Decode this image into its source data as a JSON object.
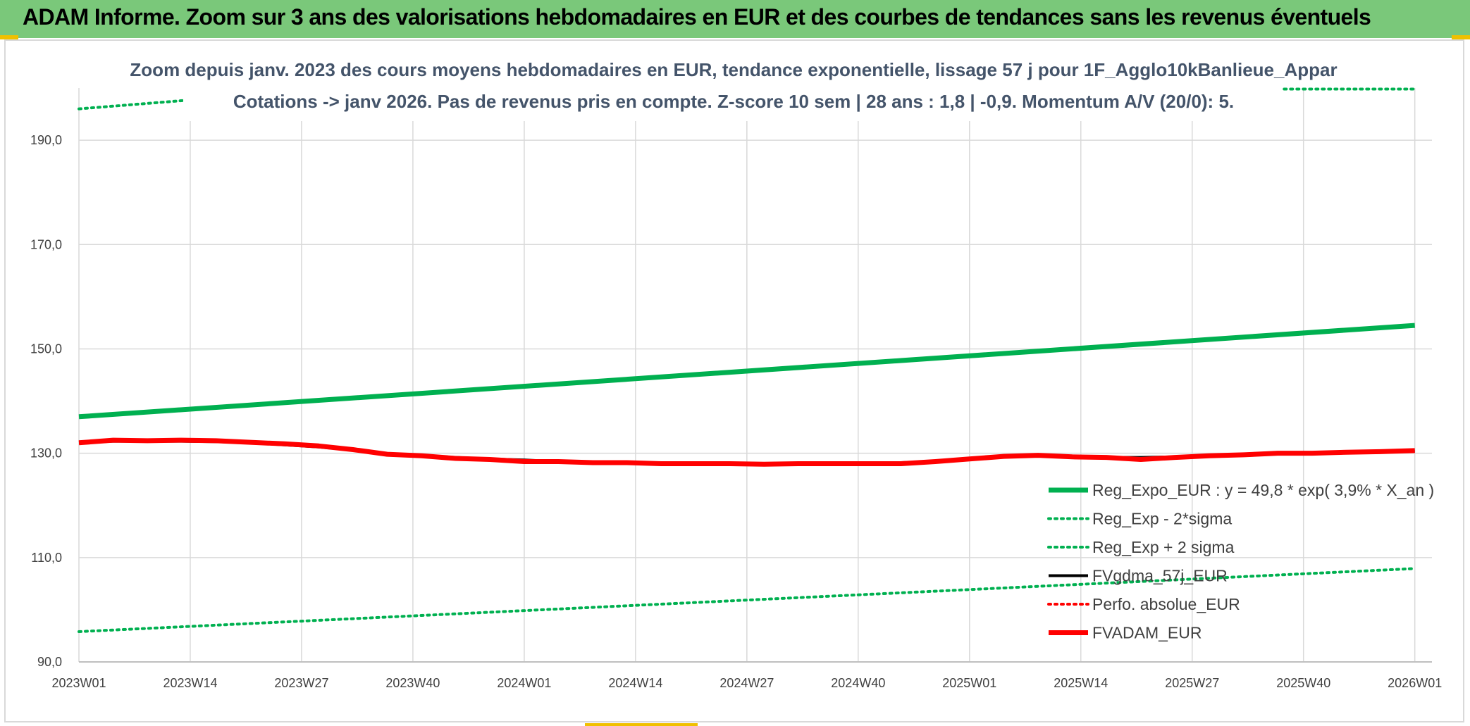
{
  "banner": {
    "title": "ADAM Informe. Zoom sur 3 ans des valorisations hebdomadaires en EUR et des courbes de tendances sans les revenus éventuels"
  },
  "chart_data": {
    "type": "line",
    "title": "Zoom depuis janv. 2023 des cours moyens hebdomadaires en EUR, tendance exponentielle, lissage 57 j pour 1F_Agglo10kBanlieue_Appar",
    "subtitle": "Cotations -> janv 2026. Pas de revenus pris en compte. Z-score 10 sem | 28 ans : 1,8 | -0,9. Momentum A/V (20/0): 5.",
    "xlabel": "",
    "ylabel": "",
    "ylim": [
      90,
      200
    ],
    "x_ticks": [
      "2023W01",
      "2023W14",
      "2023W27",
      "2023W40",
      "2024W01",
      "2024W14",
      "2024W27",
      "2024W40",
      "2025W01",
      "2025W14",
      "2025W27",
      "2025W40",
      "2026W01"
    ],
    "y_ticks": [
      "90,0",
      "110,0",
      "130,0",
      "150,0",
      "170,0",
      "190,0"
    ],
    "y_tick_values": [
      90,
      110,
      130,
      150,
      170,
      190
    ],
    "grid": true,
    "legend_position": "bottom-right",
    "series": [
      {
        "name": "Reg_Expo_EUR : y = 49,8 * exp( 3,9% *  X_an )",
        "color": "#00b050",
        "style": "solid-thick",
        "x": [
          0,
          156
        ],
        "y": [
          137.0,
          154.5
        ]
      },
      {
        "name": "Reg_Exp - 2*sigma",
        "color": "#00b050",
        "style": "dotted",
        "x": [
          0,
          156
        ],
        "y": [
          95.8,
          107.9
        ]
      },
      {
        "name": "Reg_Exp + 2 sigma",
        "color": "#00b050",
        "style": "dotted",
        "x": [
          0,
          13,
          140,
          156
        ],
        "y": [
          196.0,
          197.7,
          199.8,
          199.8
        ],
        "visible_x": [
          [
            0,
            13
          ],
          [
            140,
            156
          ]
        ]
      },
      {
        "name": "FVgdma_57j_EUR",
        "color": "#000000",
        "style": "solid",
        "x": [
          0,
          4,
          8,
          12,
          16,
          20,
          24,
          28,
          32,
          36,
          40,
          44,
          48,
          52,
          56,
          60,
          64,
          68,
          72,
          76,
          80,
          84,
          88,
          92,
          96,
          100,
          104,
          108,
          112,
          116,
          120,
          124,
          128,
          132,
          136,
          140,
          144,
          148,
          152,
          156
        ],
        "y": [
          132.0,
          132.3,
          132.3,
          132.3,
          132.2,
          132.0,
          131.6,
          131.2,
          130.6,
          129.9,
          129.5,
          129.2,
          128.9,
          128.7,
          128.4,
          128.3,
          128.2,
          128.1,
          128.1,
          128.0,
          128.0,
          128.1,
          128.1,
          128.1,
          128.2,
          128.4,
          128.8,
          129.3,
          129.5,
          129.4,
          129.2,
          129.2,
          129.3,
          129.6,
          129.8,
          130.0,
          130.1,
          130.2,
          130.3,
          130.4
        ]
      },
      {
        "name": "Perfo. absolue_EUR",
        "color": "#ff0000",
        "style": "dotted",
        "x": [],
        "y": []
      },
      {
        "name": "FVADAM_EUR",
        "color": "#ff0000",
        "style": "solid-thick",
        "x": [
          0,
          4,
          8,
          12,
          16,
          20,
          24,
          28,
          32,
          36,
          40,
          44,
          48,
          52,
          56,
          60,
          64,
          68,
          72,
          76,
          80,
          84,
          88,
          92,
          96,
          100,
          104,
          108,
          112,
          116,
          120,
          124,
          128,
          132,
          136,
          140,
          144,
          148,
          152,
          156
        ],
        "y": [
          132.0,
          132.5,
          132.4,
          132.5,
          132.4,
          132.1,
          131.8,
          131.4,
          130.7,
          129.8,
          129.5,
          129.0,
          128.8,
          128.4,
          128.4,
          128.2,
          128.2,
          128.0,
          128.0,
          128.0,
          127.9,
          128.0,
          128.0,
          128.0,
          128.0,
          128.4,
          128.9,
          129.4,
          129.6,
          129.3,
          129.2,
          128.8,
          129.2,
          129.5,
          129.7,
          130.0,
          130.0,
          130.2,
          130.3,
          130.5
        ]
      }
    ]
  }
}
